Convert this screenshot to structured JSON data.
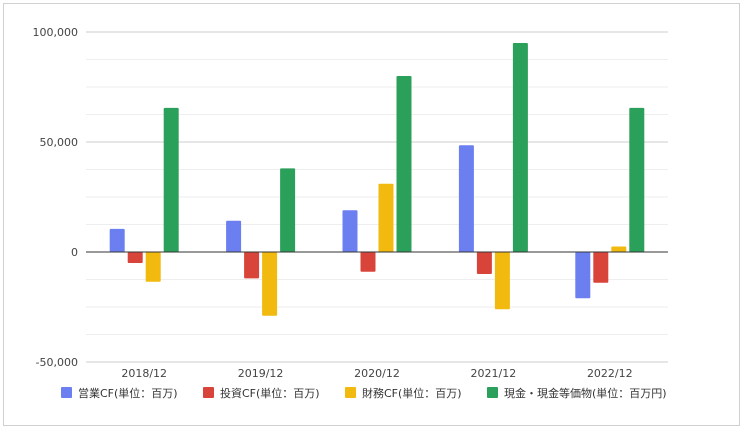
{
  "chart_data": {
    "type": "bar",
    "categories": [
      "2018/12",
      "2019/12",
      "2020/12",
      "2021/12",
      "2022/12"
    ],
    "series": [
      {
        "name": "営業CF(単位：百万)",
        "color": "#6b7ff0",
        "values": [
          10500,
          14200,
          19000,
          48500,
          -21000
        ]
      },
      {
        "name": "投資CF(単位：百万)",
        "color": "#d9443a",
        "values": [
          -5000,
          -12000,
          -9000,
          -10000,
          -14000
        ]
      },
      {
        "name": "財務CF(単位：百万)",
        "color": "#f2b90f",
        "values": [
          -13500,
          -29000,
          31000,
          -26000,
          2500
        ]
      },
      {
        "name": "現金・現金等価物(単位：百万円)",
        "color": "#2aa05a",
        "values": [
          65500,
          38000,
          80000,
          95000,
          65500
        ]
      }
    ],
    "ylim": [
      -50000,
      100000
    ],
    "yticks": [
      "100,000",
      "50,000",
      "0",
      "-50,000"
    ],
    "ytick_values": [
      100000,
      50000,
      0,
      -50000
    ],
    "grid": true,
    "legend_position": "bottom"
  }
}
